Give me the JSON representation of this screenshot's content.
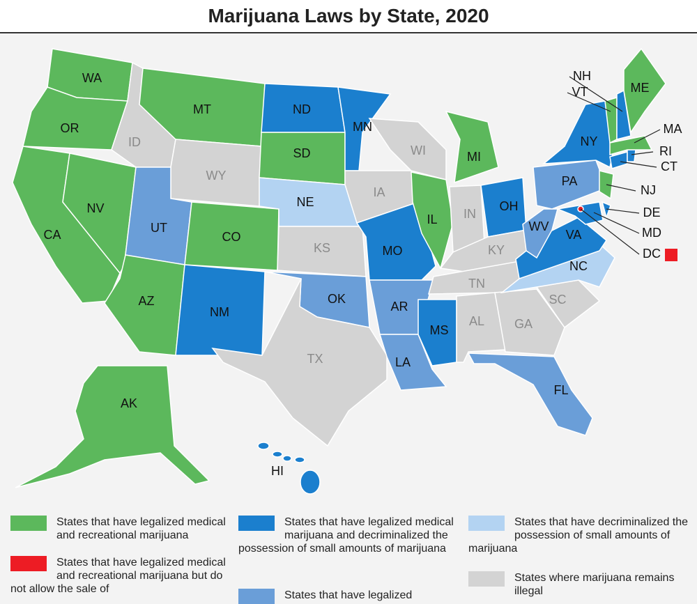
{
  "title": "Marijuana Laws by State, 2020",
  "states": [
    {
      "label": "WA",
      "color": "#5cb85c"
    },
    {
      "label": "OR",
      "color": "#5cb85c"
    },
    {
      "label": "CA",
      "color": "#5cb85c"
    },
    {
      "label": "NV",
      "color": "#5cb85c"
    },
    {
      "label": "ID",
      "color": "#d3d3d3"
    },
    {
      "label": "MT",
      "color": "#5cb85c"
    },
    {
      "label": "WY",
      "color": "#d3d3d3"
    },
    {
      "label": "UT",
      "color": "#6a9ed8"
    },
    {
      "label": "CO",
      "color": "#5cb85c"
    },
    {
      "label": "AZ",
      "color": "#5cb85c"
    },
    {
      "label": "NM",
      "color": "#1b7fce"
    },
    {
      "label": "ND",
      "color": "#1b7fce"
    },
    {
      "label": "SD",
      "color": "#5cb85c"
    },
    {
      "label": "NE",
      "color": "#b3d3f2"
    },
    {
      "label": "KS",
      "color": "#d3d3d3"
    },
    {
      "label": "OK",
      "color": "#6a9ed8"
    },
    {
      "label": "TX",
      "color": "#d3d3d3"
    },
    {
      "label": "MN",
      "color": "#1b7fce"
    },
    {
      "label": "IA",
      "color": "#d3d3d3"
    },
    {
      "label": "MO",
      "color": "#1b7fce"
    },
    {
      "label": "AR",
      "color": "#6a9ed8"
    },
    {
      "label": "LA",
      "color": "#6a9ed8"
    },
    {
      "label": "WI",
      "color": "#d3d3d3"
    },
    {
      "label": "IL",
      "color": "#5cb85c"
    },
    {
      "label": "MI",
      "color": "#5cb85c"
    },
    {
      "label": "IN",
      "color": "#d3d3d3"
    },
    {
      "label": "OH",
      "color": "#1b7fce"
    },
    {
      "label": "KY",
      "color": "#d3d3d3"
    },
    {
      "label": "TN",
      "color": "#d3d3d3"
    },
    {
      "label": "MS",
      "color": "#1b7fce"
    },
    {
      "label": "AL",
      "color": "#d3d3d3"
    },
    {
      "label": "GA",
      "color": "#d3d3d3"
    },
    {
      "label": "FL",
      "color": "#6a9ed8"
    },
    {
      "label": "SC",
      "color": "#d3d3d3"
    },
    {
      "label": "NC",
      "color": "#b3d3f2"
    },
    {
      "label": "VA",
      "color": "#1b7fce"
    },
    {
      "label": "WV",
      "color": "#6a9ed8"
    },
    {
      "label": "PA",
      "color": "#6a9ed8"
    },
    {
      "label": "NY",
      "color": "#1b7fce"
    },
    {
      "label": "NJ",
      "color": "#5cb85c"
    },
    {
      "label": "DE",
      "color": "#1b7fce"
    },
    {
      "label": "MD",
      "color": "#1b7fce"
    },
    {
      "label": "CT",
      "color": "#1b7fce"
    },
    {
      "label": "RI",
      "color": "#1b7fce"
    },
    {
      "label": "MA",
      "color": "#5cb85c"
    },
    {
      "label": "VT",
      "color": "#5cb85c"
    },
    {
      "label": "NH",
      "color": "#1b7fce"
    },
    {
      "label": "ME",
      "color": "#5cb85c"
    },
    {
      "label": "DC",
      "color": "#ed1c24"
    },
    {
      "label": "AK",
      "color": "#5cb85c"
    },
    {
      "label": "HI",
      "color": "#1b7fce"
    }
  ],
  "legend": [
    {
      "color": "#5cb85c",
      "text": "States that have legalized medical and recreational marijuana"
    },
    {
      "color": "#ed1c24",
      "text": "States that have legalized medical and recreational marijuana but do not allow the sale of"
    },
    {
      "color": "#1b7fce",
      "text": "States that have legalized medical marijuana and decriminalized the possession of small amounts of marijuana"
    },
    {
      "color": "#6a9ed8",
      "text": "States that have legalized"
    },
    {
      "color": "#b3d3f2",
      "text": "States that have decriminalized the possession of small amounts of marijuana"
    },
    {
      "color": "#d3d3d3",
      "text": "States where marijuana remains illegal"
    }
  ]
}
